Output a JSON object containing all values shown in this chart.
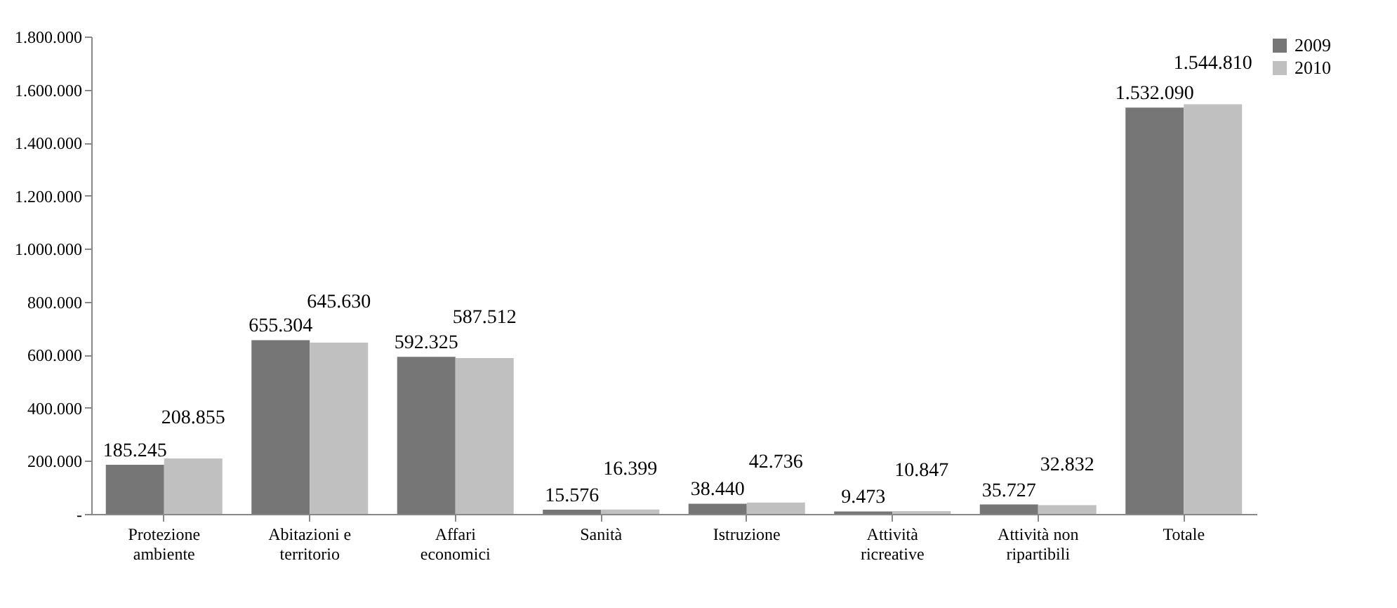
{
  "chart_data": {
    "type": "bar",
    "categories": [
      "Protezione ambiente",
      "Abitazioni e territorio",
      "Affari economici",
      "Sanità",
      "Istruzione",
      "Attività ricreative",
      "Attività non ripartibili",
      "Totale"
    ],
    "series": [
      {
        "name": "2009",
        "color": "#767676",
        "values": [
          185245,
          655304,
          592325,
          15576,
          38440,
          9473,
          35727,
          1532090
        ],
        "value_labels": [
          "185.245",
          "655.304",
          "592.325",
          "15.576",
          "38.440",
          "9.473",
          "35.727",
          "1.532.090"
        ]
      },
      {
        "name": "2010",
        "color": "#c0c0c0",
        "values": [
          208855,
          645630,
          587512,
          16399,
          42736,
          10847,
          32832,
          1544810
        ],
        "value_labels": [
          "208.855",
          "645.630",
          "587.512",
          "16.399",
          "42.736",
          "10.847",
          "32.832",
          "1.544.810"
        ]
      }
    ],
    "ylim": [
      0,
      1800000
    ],
    "yticks": [
      {
        "value": 0,
        "label": "-"
      },
      {
        "value": 200000,
        "label": "200.000"
      },
      {
        "value": 400000,
        "label": "400.000"
      },
      {
        "value": 600000,
        "label": "600.000"
      },
      {
        "value": 800000,
        "label": "800.000"
      },
      {
        "value": 1000000,
        "label": "1.000.000"
      },
      {
        "value": 1200000,
        "label": "1.200.000"
      },
      {
        "value": 1400000,
        "label": "1.400.000"
      },
      {
        "value": 1600000,
        "label": "1.600.000"
      },
      {
        "value": 1800000,
        "label": "1.800.000"
      }
    ],
    "legend": "right",
    "grid": false
  }
}
